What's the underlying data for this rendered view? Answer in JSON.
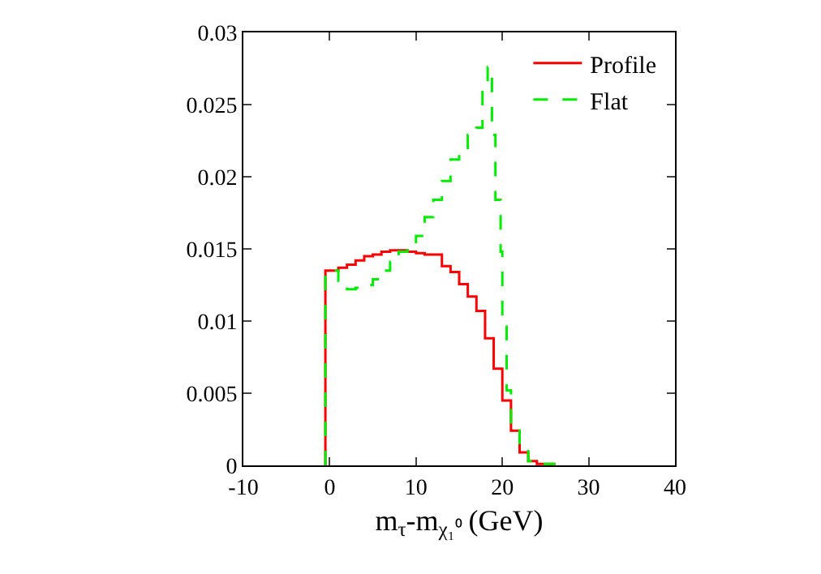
{
  "chart_data": {
    "type": "step",
    "xlabel": "m$_{τ}$-m$_{χ₁⁰}$ (GeV)",
    "xlim": [
      -10,
      40
    ],
    "xticks": [
      -10,
      0,
      10,
      20,
      30,
      40
    ],
    "ylim": [
      0,
      0.03
    ],
    "yticks": [
      0,
      0.005,
      0.01,
      0.015,
      0.02,
      0.025,
      0.03
    ],
    "grid": false,
    "legend": "top right",
    "series": [
      {
        "name": "Profile",
        "color": "#ff0000",
        "line_style": "solid",
        "x": [
          -0.5,
          -0.5,
          1,
          2,
          3,
          4,
          5,
          6,
          7,
          8,
          9,
          10,
          11,
          12,
          13,
          14,
          15,
          16,
          17,
          18,
          19,
          20,
          21,
          22,
          23,
          24,
          26
        ],
        "values": [
          0,
          0.0135,
          0.0137,
          0.0139,
          0.0142,
          0.0145,
          0.0146,
          0.0148,
          0.0149,
          0.0149,
          0.0148,
          0.0147,
          0.0146,
          0.0146,
          0.0138,
          0.0134,
          0.01255,
          0.0117,
          0.0107,
          0.0088,
          0.0067,
          0.0045,
          0.0024,
          0.0009,
          0.0003,
          0.0001,
          0
        ]
      },
      {
        "name": "Flat",
        "color": "#00ee00",
        "line_style": "dashed",
        "x": [
          -0.5,
          -0.5,
          1,
          2,
          3,
          4,
          5,
          6,
          7,
          8,
          9,
          10,
          11,
          12,
          13,
          14,
          15,
          16,
          17,
          17.7,
          18.3,
          18.8,
          19.2,
          19.8,
          20,
          20.5,
          21,
          22,
          23,
          24,
          26
        ],
        "values": [
          0,
          0.0135,
          0.0128,
          0.0122,
          0.0123,
          0.0125,
          0.0129,
          0.0135,
          0.0141,
          0.0148,
          0.0153,
          0.0159,
          0.0172,
          0.0184,
          0.0197,
          0.0212,
          0.022,
          0.0229,
          0.0234,
          0.0262,
          0.0276,
          0.0229,
          0.0184,
          0.0148,
          0.0096,
          0.0052,
          0.0026,
          0.0011,
          0.0003,
          0.0001,
          0
        ]
      }
    ]
  }
}
